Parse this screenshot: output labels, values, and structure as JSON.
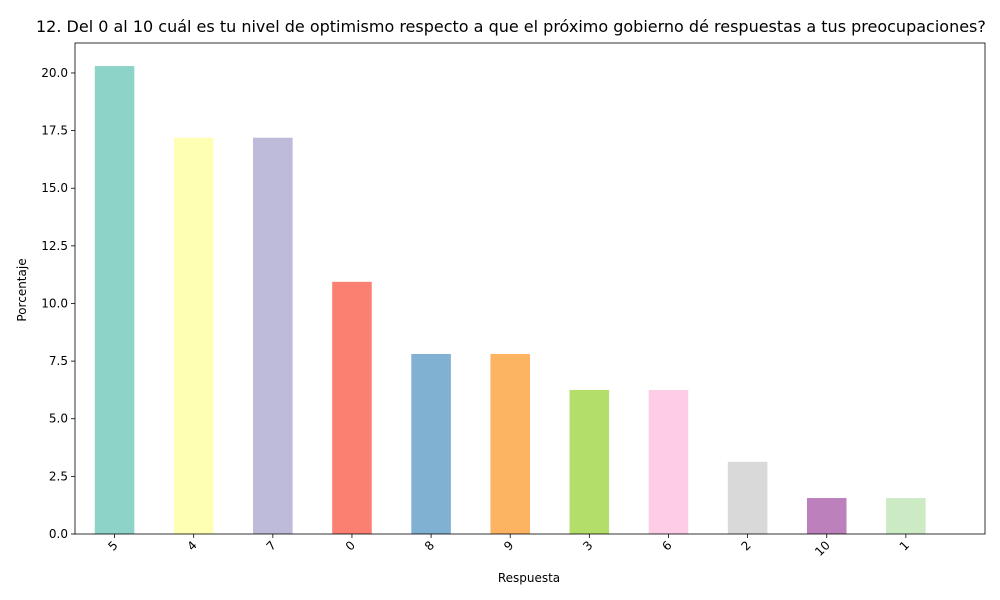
{
  "chart_data": {
    "type": "bar",
    "title": "12. Del 0 al 10 cuál es tu nivel de optimismo respecto a que el próximo gobierno dé respuestas a tus preocupaciones?",
    "xlabel": "Respuesta",
    "ylabel": "Porcentaje",
    "categories": [
      "5",
      "4",
      "7",
      "0",
      "8",
      "9",
      "3",
      "6",
      "2",
      "10",
      "1"
    ],
    "values": [
      20.3,
      17.19,
      17.19,
      10.94,
      7.81,
      7.81,
      6.25,
      6.25,
      3.13,
      1.56,
      1.56
    ],
    "colors": [
      "#8dd3c7",
      "#ffffb3",
      "#bebada",
      "#fb8072",
      "#80b1d3",
      "#fdb462",
      "#b3de69",
      "#fccde5",
      "#d9d9d9",
      "#bc80bd",
      "#ccebc5"
    ],
    "ylim": [
      0,
      21.3
    ],
    "yticks": [
      "0.0",
      "2.5",
      "5.0",
      "7.5",
      "10.0",
      "12.5",
      "15.0",
      "17.5",
      "20.0"
    ],
    "grid": false,
    "legend": "none"
  }
}
